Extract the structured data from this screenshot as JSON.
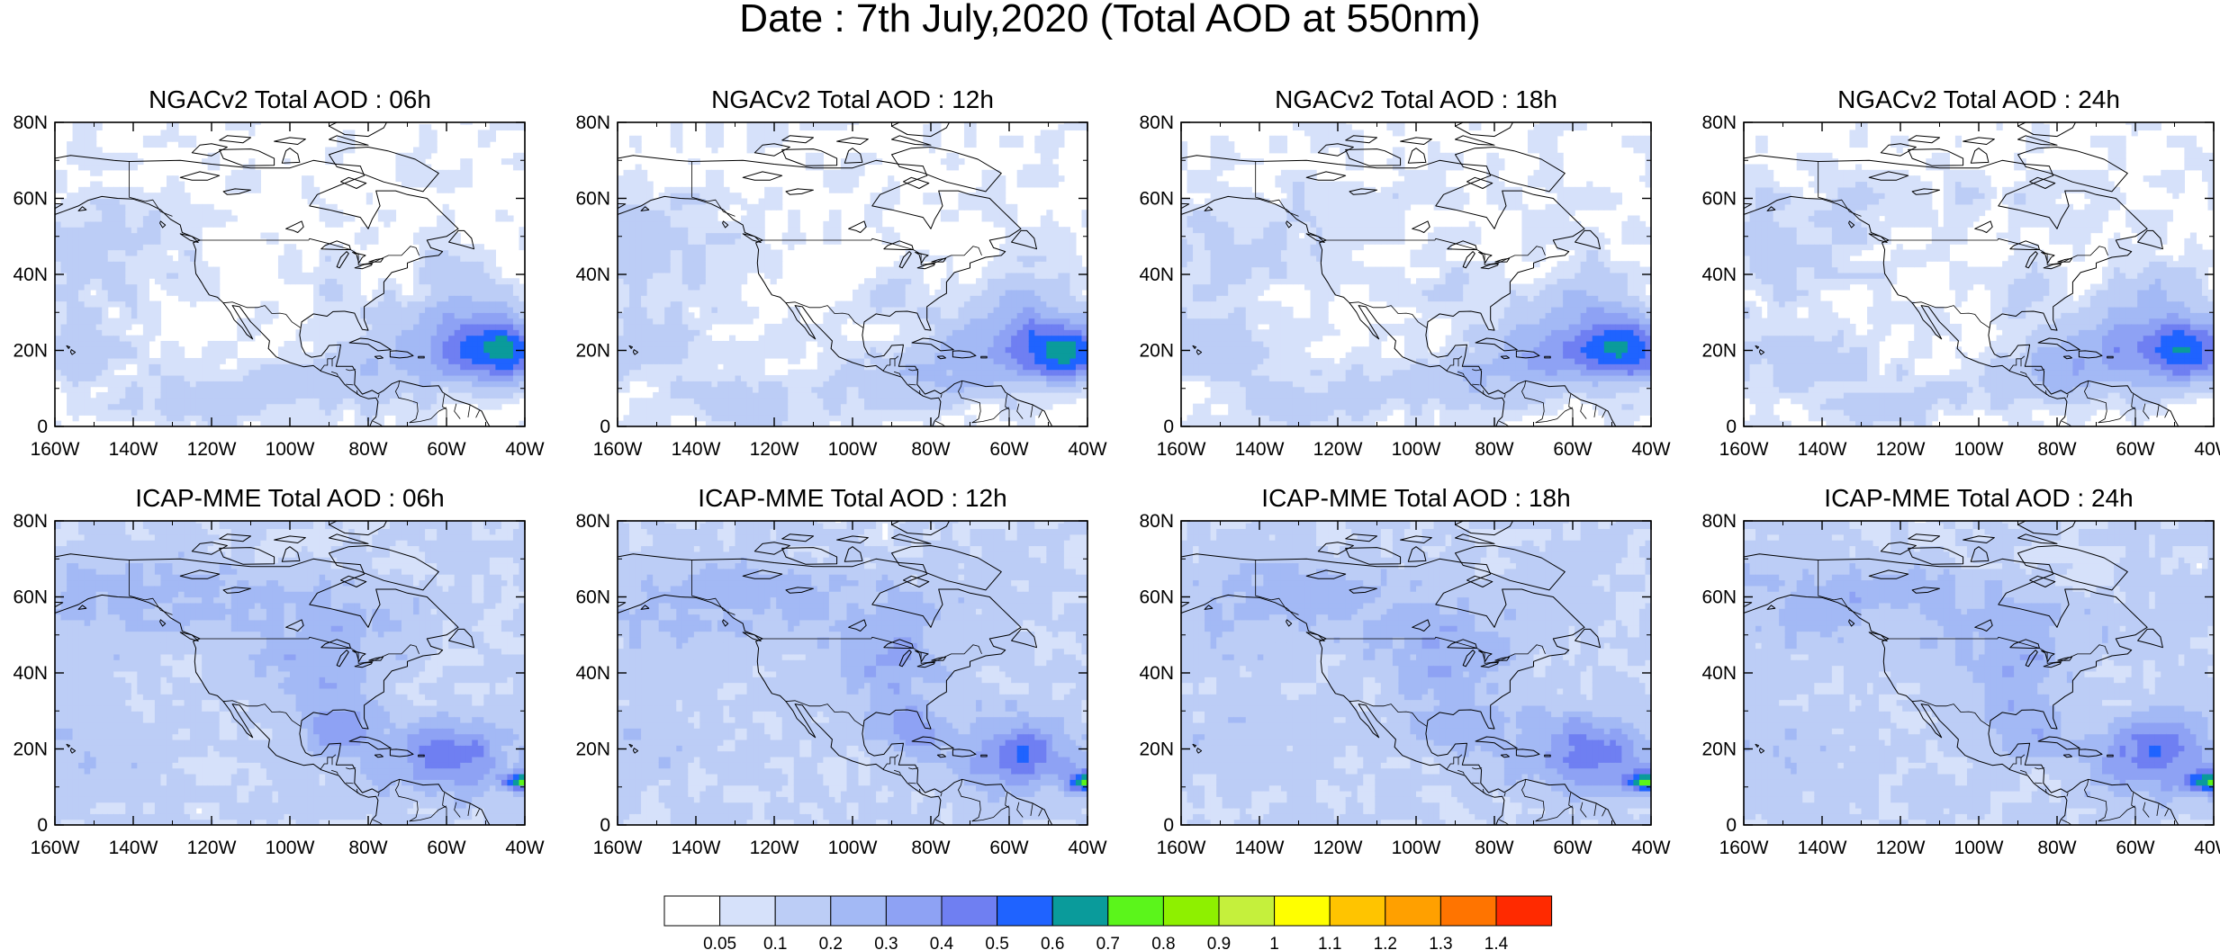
{
  "figure": {
    "title": "Date : 7th July,2020 (Total AOD at 550nm)"
  },
  "axes": {
    "lat_labels": [
      "80N",
      "60N",
      "40N",
      "20N",
      "0"
    ],
    "lon_labels": [
      "160W",
      "140W",
      "120W",
      "100W",
      "80W",
      "60W",
      "40W"
    ],
    "lat_range": [
      0,
      80
    ],
    "lon_range": [
      -160,
      -40
    ]
  },
  "panels": [
    {
      "title": "NGACv2 Total AOD : 06h",
      "model": "NGACv2",
      "hour": "06h"
    },
    {
      "title": "NGACv2 Total AOD : 12h",
      "model": "NGACv2",
      "hour": "12h"
    },
    {
      "title": "NGACv2 Total AOD : 18h",
      "model": "NGACv2",
      "hour": "18h"
    },
    {
      "title": "NGACv2 Total AOD : 24h",
      "model": "NGACv2",
      "hour": "24h"
    },
    {
      "title": "ICAP-MME Total AOD : 06h",
      "model": "ICAP-MME",
      "hour": "06h"
    },
    {
      "title": "ICAP-MME Total AOD : 12h",
      "model": "ICAP-MME",
      "hour": "12h"
    },
    {
      "title": "ICAP-MME Total AOD : 18h",
      "model": "ICAP-MME",
      "hour": "18h"
    },
    {
      "title": "ICAP-MME Total AOD : 24h",
      "model": "ICAP-MME",
      "hour": "24h"
    }
  ],
  "colorbar": {
    "labels": [
      "0.05",
      "0.1",
      "0.2",
      "0.3",
      "0.4",
      "0.5",
      "0.6",
      "0.7",
      "0.8",
      "0.9",
      "1",
      "1.1",
      "1.2",
      "1.3",
      "1.4"
    ],
    "colors": [
      "#ffffff",
      "#d6e1fa",
      "#bccdf6",
      "#a3b9f5",
      "#8ea2f4",
      "#6f7ff2",
      "#1f63ff",
      "#0a9b9b",
      "#5bf51b",
      "#8ef000",
      "#c5f03c",
      "#ffff00",
      "#ffc400",
      "#ffa000",
      "#ff7400",
      "#ff2a00"
    ]
  },
  "colors": {
    "land_outline": "#000000",
    "low_aod": "#d6e1fa",
    "moderate_aod": "#a3b9f5",
    "high_aod": "#6f7ff2",
    "peak_aod": "#5bf51b"
  }
}
